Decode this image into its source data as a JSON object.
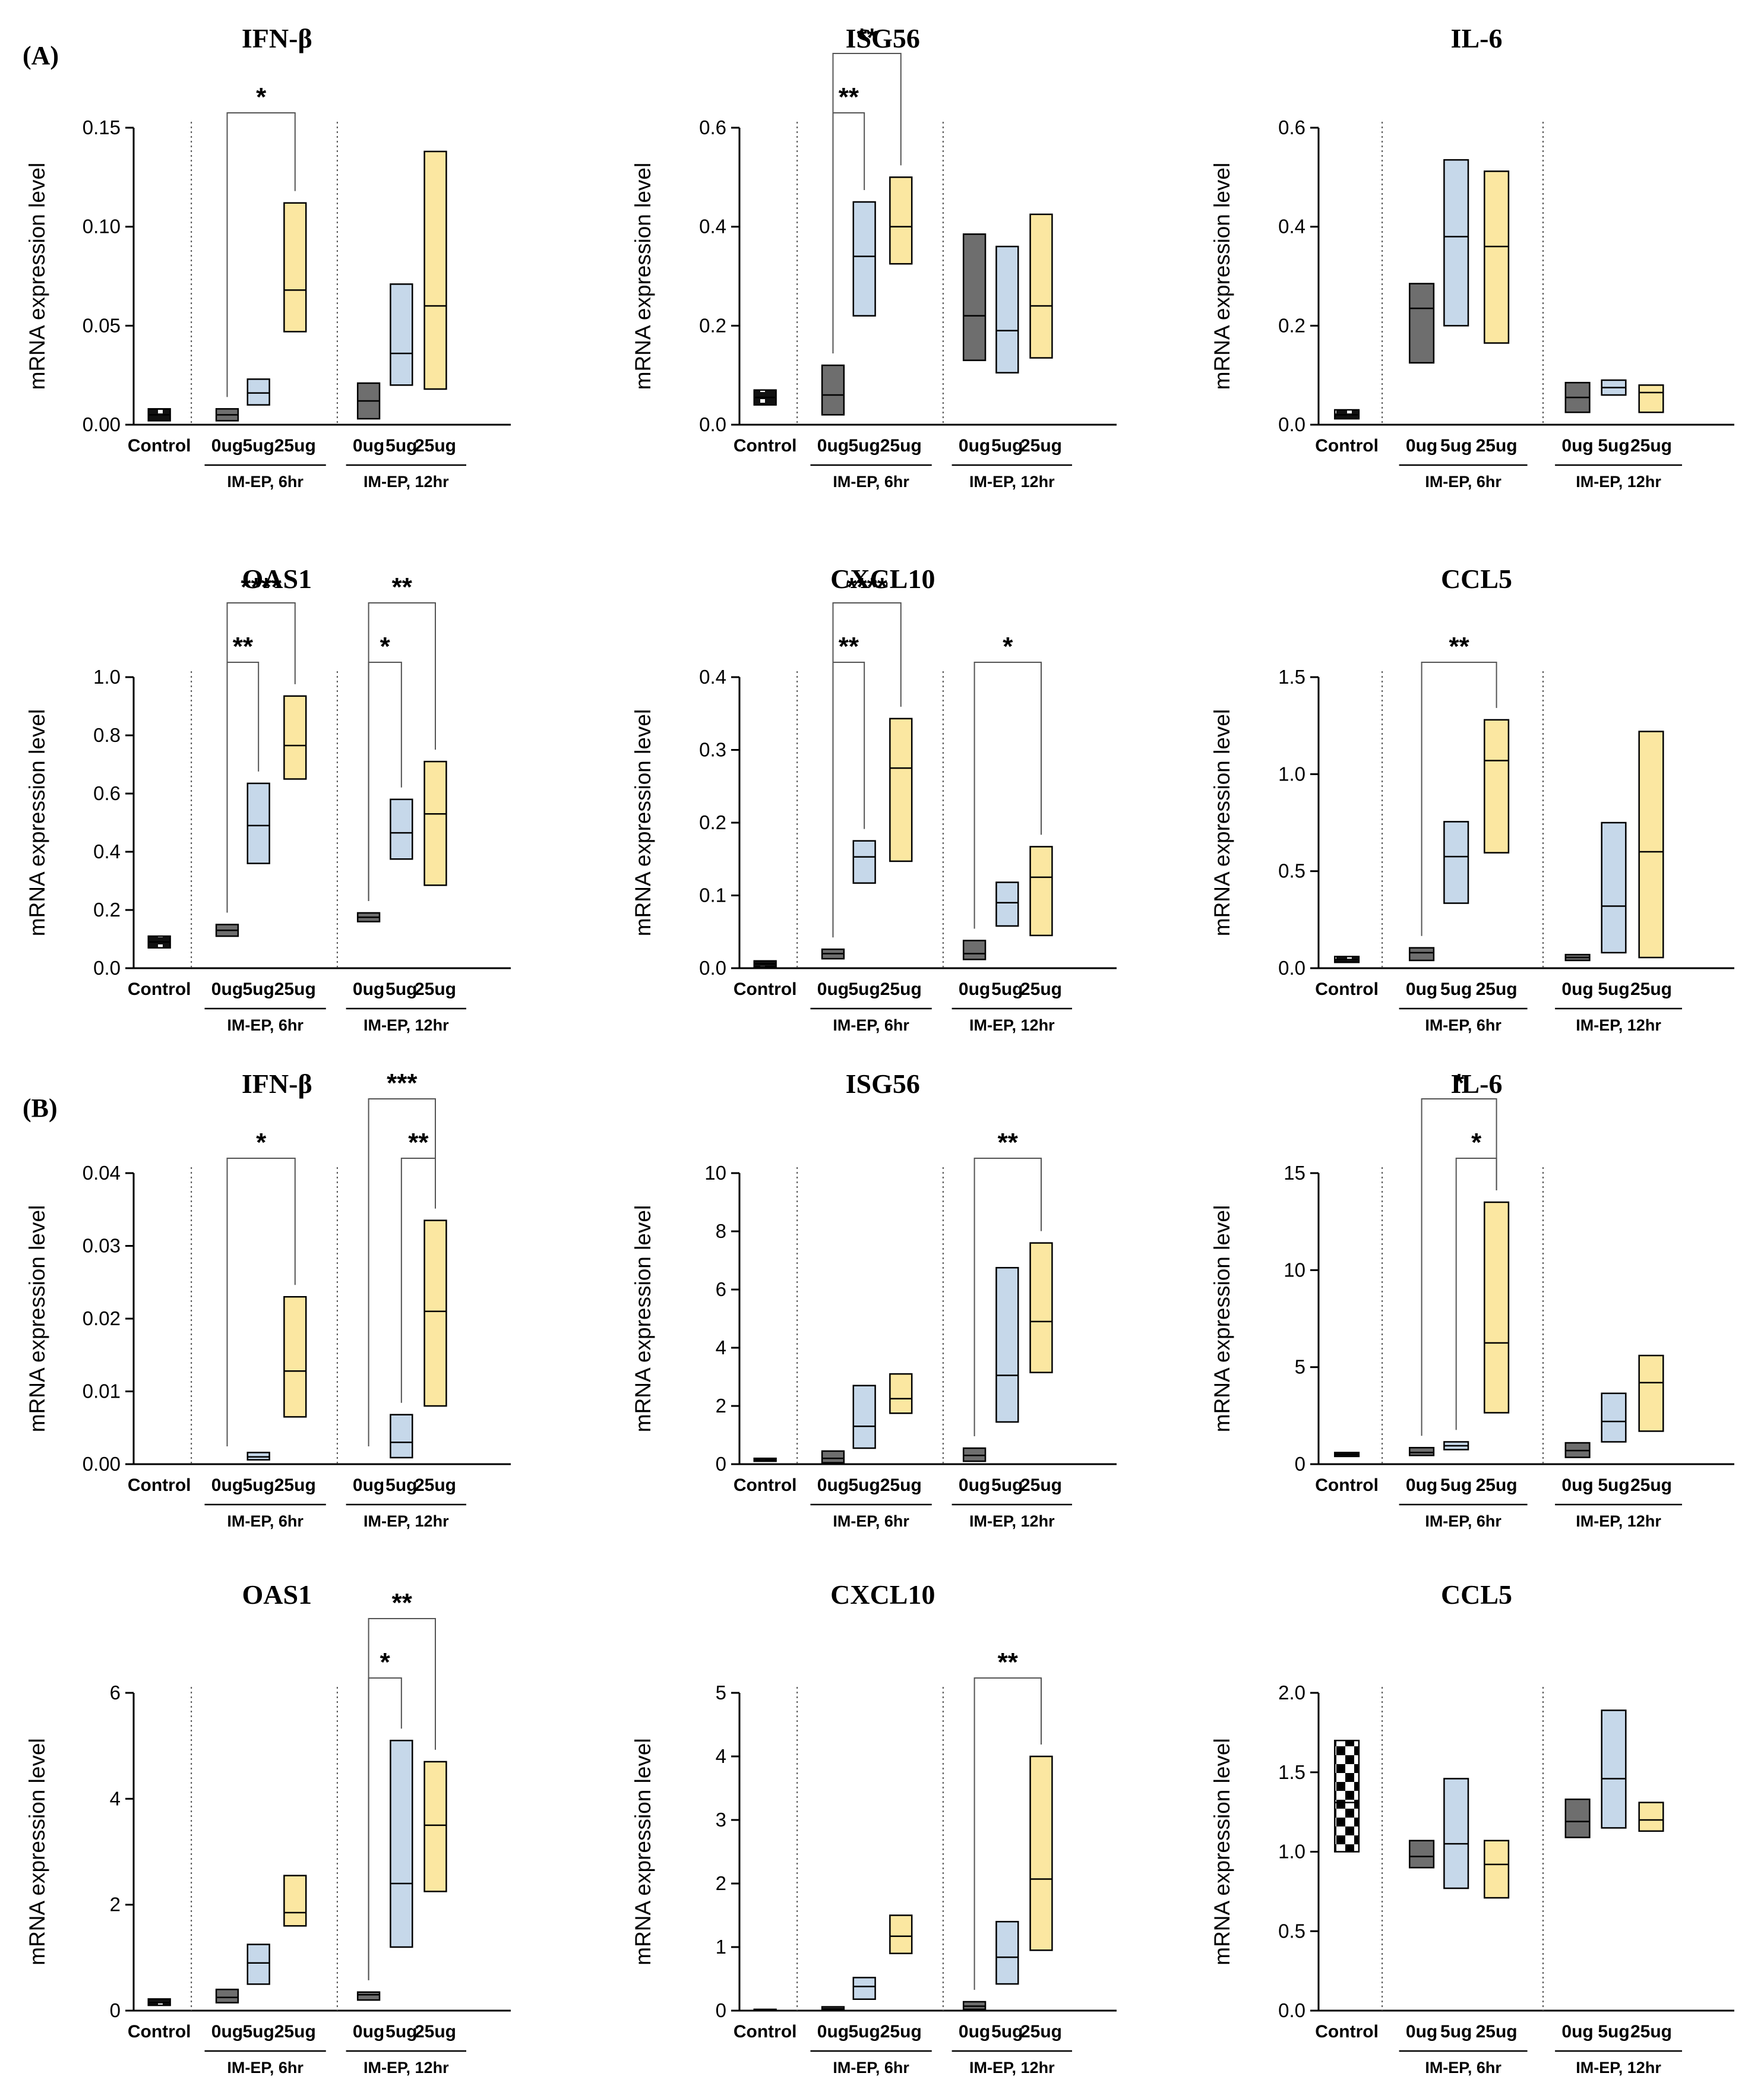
{
  "figure": {
    "panel_labels": [
      "(A)",
      "(B)"
    ],
    "colors": {
      "control_fill": "#111111",
      "zero_fill": "#6e6e6e",
      "five_fill": "#c6d8ea",
      "twentyfive_fill": "#fbe7a1",
      "stroke": "#000000"
    }
  },
  "chart_data": [
    {
      "type": "box",
      "panel": "(A)",
      "title": "IFN-β",
      "ylabel": "mRNA expression level",
      "ylim": [
        0,
        0.15
      ],
      "yticks": [
        "0.00",
        "0.05",
        "0.10",
        "0.15"
      ],
      "categories": [
        "Control",
        "0ug",
        "5ug",
        "25ug",
        "0ug",
        "5ug",
        "25ug"
      ],
      "groups": [
        "IM-EP, 6hr",
        "IM-EP, 12hr"
      ],
      "boxes": [
        [
          0.002,
          0.005,
          0.008
        ],
        [
          0.002,
          0.005,
          0.008
        ],
        [
          0.01,
          0.016,
          0.023
        ],
        [
          0.047,
          0.068,
          0.112
        ],
        [
          0.003,
          0.012,
          0.021
        ],
        [
          0.02,
          0.036,
          0.071
        ],
        [
          0.018,
          0.06,
          0.138
        ]
      ],
      "significance": [
        {
          "from": 1,
          "to": 3,
          "label": "*",
          "level": 0
        }
      ]
    },
    {
      "type": "box",
      "panel": "(A)",
      "title": "ISG56",
      "ylabel": "mRNA expression level",
      "ylim": [
        0,
        0.6
      ],
      "yticks": [
        "0.0",
        "0.2",
        "0.4",
        "0.6"
      ],
      "categories": [
        "Control",
        "0ug",
        "5ug",
        "25ug",
        "0ug",
        "5ug",
        "25ug"
      ],
      "groups": [
        "IM-EP, 6hr",
        "IM-EP, 12hr"
      ],
      "boxes": [
        [
          0.04,
          0.055,
          0.07
        ],
        [
          0.02,
          0.06,
          0.12
        ],
        [
          0.22,
          0.34,
          0.45
        ],
        [
          0.325,
          0.4,
          0.5
        ],
        [
          0.13,
          0.22,
          0.385
        ],
        [
          0.105,
          0.19,
          0.36
        ],
        [
          0.135,
          0.24,
          0.425
        ]
      ],
      "significance": [
        {
          "from": 1,
          "to": 2,
          "label": "**",
          "level": 0
        },
        {
          "from": 1,
          "to": 3,
          "label": "**",
          "level": 1
        }
      ]
    },
    {
      "type": "box",
      "panel": "(A)",
      "title": "IL-6",
      "ylabel": "mRNA expression level",
      "ylim": [
        0,
        0.6
      ],
      "yticks": [
        "0.0",
        "0.2",
        "0.4",
        "0.6"
      ],
      "categories": [
        "Control",
        "0ug",
        "5ug",
        "25ug",
        "0ug",
        "5ug",
        "25ug"
      ],
      "groups": [
        "IM-EP, 6hr",
        "IM-EP, 12hr"
      ],
      "boxes": [
        [
          0.012,
          0.02,
          0.03
        ],
        [
          0.125,
          0.235,
          0.285
        ],
        [
          0.2,
          0.38,
          0.535
        ],
        [
          0.165,
          0.36,
          0.512
        ],
        [
          0.025,
          0.055,
          0.085
        ],
        [
          0.06,
          0.075,
          0.09
        ],
        [
          0.025,
          0.065,
          0.08
        ]
      ],
      "significance": []
    },
    {
      "type": "box",
      "panel": "(A)",
      "title": "OAS1",
      "ylabel": "mRNA expression level",
      "ylim": [
        0,
        1.0
      ],
      "yticks": [
        "0.0",
        "0.2",
        "0.4",
        "0.6",
        "0.8",
        "1.0"
      ],
      "categories": [
        "Control",
        "0ug",
        "5ug",
        "25ug",
        "0ug",
        "5ug",
        "25ug"
      ],
      "groups": [
        "IM-EP, 6hr",
        "IM-EP, 12hr"
      ],
      "boxes": [
        [
          0.07,
          0.09,
          0.11
        ],
        [
          0.11,
          0.13,
          0.15
        ],
        [
          0.36,
          0.49,
          0.635
        ],
        [
          0.65,
          0.765,
          0.935
        ],
        [
          0.16,
          0.175,
          0.19
        ],
        [
          0.375,
          0.465,
          0.58
        ],
        [
          0.285,
          0.53,
          0.71
        ]
      ],
      "significance": [
        {
          "from": 1,
          "to": 2,
          "label": "**",
          "level": 0
        },
        {
          "from": 1,
          "to": 3,
          "label": "****",
          "level": 1
        },
        {
          "from": 4,
          "to": 5,
          "label": "*",
          "level": 0
        },
        {
          "from": 4,
          "to": 6,
          "label": "**",
          "level": 1
        }
      ]
    },
    {
      "type": "box",
      "panel": "(A)",
      "title": "CXCL10",
      "ylabel": "mRNA expression level",
      "ylim": [
        0,
        0.4
      ],
      "yticks": [
        "0.0",
        "0.1",
        "0.2",
        "0.3",
        "0.4"
      ],
      "categories": [
        "Control",
        "0ug",
        "5ug",
        "25ug",
        "0ug",
        "5ug",
        "25ug"
      ],
      "groups": [
        "IM-EP, 6hr",
        "IM-EP, 12hr"
      ],
      "boxes": [
        [
          0.002,
          0.006,
          0.01
        ],
        [
          0.013,
          0.02,
          0.026
        ],
        [
          0.117,
          0.153,
          0.175
        ],
        [
          0.147,
          0.275,
          0.343
        ],
        [
          0.012,
          0.02,
          0.038
        ],
        [
          0.058,
          0.09,
          0.118
        ],
        [
          0.045,
          0.125,
          0.167
        ]
      ],
      "significance": [
        {
          "from": 1,
          "to": 2,
          "label": "**",
          "level": 0
        },
        {
          "from": 1,
          "to": 3,
          "label": "****",
          "level": 1
        },
        {
          "from": 4,
          "to": 6,
          "label": "*",
          "level": 0
        }
      ]
    },
    {
      "type": "box",
      "panel": "(A)",
      "title": "CCL5",
      "ylabel": "mRNA expression level",
      "ylim": [
        0,
        1.5
      ],
      "yticks": [
        "0.0",
        "0.5",
        "1.0",
        "1.5"
      ],
      "categories": [
        "Control",
        "0ug",
        "5ug",
        "25ug",
        "0ug",
        "5ug",
        "25ug"
      ],
      "groups": [
        "IM-EP, 6hr",
        "IM-EP, 12hr"
      ],
      "boxes": [
        [
          0.03,
          0.045,
          0.06
        ],
        [
          0.04,
          0.08,
          0.105
        ],
        [
          0.335,
          0.575,
          0.755
        ],
        [
          0.595,
          1.07,
          1.28
        ],
        [
          0.04,
          0.055,
          0.07
        ],
        [
          0.08,
          0.32,
          0.75
        ],
        [
          0.055,
          0.6,
          1.22
        ]
      ],
      "significance": [
        {
          "from": 1,
          "to": 3,
          "label": "**",
          "level": 0
        }
      ]
    },
    {
      "type": "box",
      "panel": "(B)",
      "title": "IFN-β",
      "ylabel": "mRNA expression level",
      "ylim": [
        0,
        0.04
      ],
      "yticks": [
        "0.00",
        "0.01",
        "0.02",
        "0.03",
        "0.04"
      ],
      "categories": [
        "Control",
        "0ug",
        "5ug",
        "25ug",
        "0ug",
        "5ug",
        "25ug"
      ],
      "groups": [
        "IM-EP, 6hr",
        "IM-EP, 12hr"
      ],
      "boxes": [
        null,
        null,
        [
          0.0006,
          0.001,
          0.0016
        ],
        [
          0.0065,
          0.0128,
          0.023
        ],
        null,
        [
          0.0009,
          0.003,
          0.0068
        ],
        [
          0.008,
          0.021,
          0.0335
        ]
      ],
      "significance": [
        {
          "from": 1,
          "to": 3,
          "label": "*",
          "level": 0
        },
        {
          "from": 5,
          "to": 6,
          "label": "**",
          "level": 0
        },
        {
          "from": 4,
          "to": 6,
          "label": "***",
          "level": 1
        }
      ]
    },
    {
      "type": "box",
      "panel": "(B)",
      "title": "ISG56",
      "ylabel": "mRNA expression level",
      "ylim": [
        0,
        10
      ],
      "yticks": [
        "0",
        "2",
        "4",
        "6",
        "8",
        "10"
      ],
      "categories": [
        "Control",
        "0ug",
        "5ug",
        "25ug",
        "0ug",
        "5ug",
        "25ug"
      ],
      "groups": [
        "IM-EP, 6hr",
        "IM-EP, 12hr"
      ],
      "boxes": [
        [
          0.1,
          0.15,
          0.2
        ],
        [
          0.05,
          0.2,
          0.45
        ],
        [
          0.55,
          1.3,
          2.7
        ],
        [
          1.75,
          2.25,
          3.1
        ],
        [
          0.1,
          0.3,
          0.55
        ],
        [
          1.45,
          3.05,
          6.75
        ],
        [
          3.15,
          4.9,
          7.6
        ]
      ],
      "significance": [
        {
          "from": 4,
          "to": 6,
          "label": "**",
          "level": 0
        }
      ]
    },
    {
      "type": "box",
      "panel": "(B)",
      "title": "IL-6",
      "ylabel": "mRNA expression level",
      "ylim": [
        0,
        15
      ],
      "yticks": [
        "0",
        "5",
        "10",
        "15"
      ],
      "categories": [
        "Control",
        "0ug",
        "5ug",
        "25ug",
        "0ug",
        "5ug",
        "25ug"
      ],
      "groups": [
        "IM-EP, 6hr",
        "IM-EP, 12hr"
      ],
      "boxes": [
        [
          0.4,
          0.5,
          0.6
        ],
        [
          0.45,
          0.6,
          0.85
        ],
        [
          0.75,
          0.95,
          1.15
        ],
        [
          2.65,
          6.25,
          13.5
        ],
        [
          0.35,
          0.7,
          1.1
        ],
        [
          1.15,
          2.2,
          3.65
        ],
        [
          1.7,
          4.2,
          5.6
        ]
      ],
      "significance": [
        {
          "from": 2,
          "to": 3,
          "label": "*",
          "level": 0
        },
        {
          "from": 1,
          "to": 3,
          "label": "*",
          "level": 1
        }
      ]
    },
    {
      "type": "box",
      "panel": "(B)",
      "title": "OAS1",
      "ylabel": "mRNA expression level",
      "ylim": [
        0,
        6
      ],
      "yticks": [
        "0",
        "2",
        "4",
        "6"
      ],
      "categories": [
        "Control",
        "0ug",
        "5ug",
        "25ug",
        "0ug",
        "5ug",
        "25ug"
      ],
      "groups": [
        "IM-EP, 6hr",
        "IM-EP, 12hr"
      ],
      "boxes": [
        [
          0.1,
          0.15,
          0.22
        ],
        [
          0.15,
          0.25,
          0.4
        ],
        [
          0.5,
          0.9,
          1.25
        ],
        [
          1.6,
          1.85,
          2.55
        ],
        [
          0.2,
          0.3,
          0.35
        ],
        [
          1.2,
          2.4,
          5.1
        ],
        [
          2.25,
          3.5,
          4.7
        ]
      ],
      "significance": [
        {
          "from": 4,
          "to": 5,
          "label": "*",
          "level": 0
        },
        {
          "from": 4,
          "to": 6,
          "label": "**",
          "level": 1
        }
      ]
    },
    {
      "type": "box",
      "panel": "(B)",
      "title": "CXCL10",
      "ylabel": "mRNA expression level",
      "ylim": [
        0,
        5
      ],
      "yticks": [
        "0",
        "1",
        "2",
        "3",
        "4",
        "5"
      ],
      "categories": [
        "Control",
        "0ug",
        "5ug",
        "25ug",
        "0ug",
        "5ug",
        "25ug"
      ],
      "groups": [
        "IM-EP, 6hr",
        "IM-EP, 12hr"
      ],
      "boxes": [
        [
          0.005,
          0.01,
          0.02
        ],
        [
          0.01,
          0.03,
          0.06
        ],
        [
          0.18,
          0.38,
          0.52
        ],
        [
          0.9,
          1.17,
          1.5
        ],
        [
          0.02,
          0.07,
          0.14
        ],
        [
          0.42,
          0.84,
          1.4
        ],
        [
          0.95,
          2.07,
          4.0
        ]
      ],
      "significance": [
        {
          "from": 4,
          "to": 6,
          "label": "**",
          "level": 0
        }
      ]
    },
    {
      "type": "box",
      "panel": "(B)",
      "title": "CCL5",
      "ylabel": "mRNA expression level",
      "ylim": [
        0,
        2
      ],
      "yticks": [
        "0.0",
        "0.5",
        "1.0",
        "1.5",
        "2.0"
      ],
      "categories": [
        "Control",
        "0ug",
        "5ug",
        "25ug",
        "0ug",
        "5ug",
        "25ug"
      ],
      "groups": [
        "IM-EP, 6hr",
        "IM-EP, 12hr"
      ],
      "boxes": [
        [
          1.0,
          1.31,
          1.7
        ],
        [
          0.9,
          0.97,
          1.07
        ],
        [
          0.77,
          1.05,
          1.46
        ],
        [
          0.71,
          0.92,
          1.07
        ],
        [
          1.09,
          1.19,
          1.33
        ],
        [
          1.15,
          1.46,
          1.89
        ],
        [
          1.13,
          1.2,
          1.31
        ]
      ],
      "significance": []
    }
  ]
}
